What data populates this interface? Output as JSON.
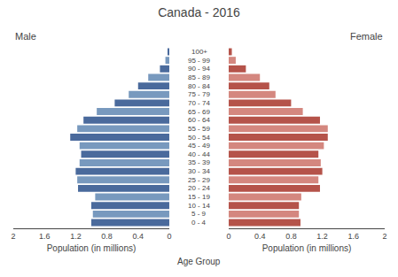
{
  "chart_data": {
    "type": "bar",
    "orientation": "horizontal",
    "title": "Canada - 2016",
    "xlabel": "Population (in millions)",
    "ylabel": "Age Group",
    "categories": [
      "0 - 4",
      "5 - 9",
      "10 - 14",
      "15 - 19",
      "20 - 24",
      "25 - 29",
      "30 - 34",
      "35 - 39",
      "40 - 44",
      "45 - 49",
      "50 - 54",
      "55 - 59",
      "60 - 64",
      "65 - 69",
      "70 - 74",
      "75 - 79",
      "80 - 84",
      "85 - 89",
      "90 - 94",
      "95 - 99",
      "100+"
    ],
    "series": [
      {
        "name": "Male",
        "values": [
          1.0,
          0.98,
          1.0,
          0.95,
          1.17,
          1.18,
          1.2,
          1.15,
          1.13,
          1.15,
          1.27,
          1.18,
          1.1,
          0.93,
          0.7,
          0.52,
          0.4,
          0.27,
          0.12,
          0.05,
          0.02
        ],
        "colors": [
          "#4a6a9c",
          "#7899be",
          "#4a6a9c",
          "#7899be",
          "#4a6a9c",
          "#7899be",
          "#4a6a9c",
          "#7899be",
          "#4a6a9c",
          "#7899be",
          "#4a6a9c",
          "#7899be",
          "#4a6a9c",
          "#7899be",
          "#4a6a9c",
          "#7899be",
          "#4a6a9c",
          "#7899be",
          "#4a6a9c",
          "#7899be",
          "#4a6a9c"
        ]
      },
      {
        "name": "Female",
        "values": [
          0.92,
          0.9,
          0.9,
          0.93,
          1.17,
          1.15,
          1.2,
          1.18,
          1.15,
          1.22,
          1.27,
          1.27,
          1.17,
          0.95,
          0.8,
          0.6,
          0.52,
          0.4,
          0.22,
          0.09,
          0.04
        ],
        "colors": [
          "#b5534a",
          "#d4877f",
          "#b5534a",
          "#d4877f",
          "#b5534a",
          "#d4877f",
          "#b5534a",
          "#d4877f",
          "#b5534a",
          "#d4877f",
          "#b5534a",
          "#d4877f",
          "#b5534a",
          "#d4877f",
          "#b5534a",
          "#d4877f",
          "#b5534a",
          "#d4877f",
          "#b5534a",
          "#d4877f",
          "#b5534a"
        ]
      }
    ],
    "xlim": [
      0,
      2
    ],
    "xticks": [
      0,
      0.4,
      0.8,
      1.2,
      1.6,
      2
    ],
    "grid": false
  }
}
